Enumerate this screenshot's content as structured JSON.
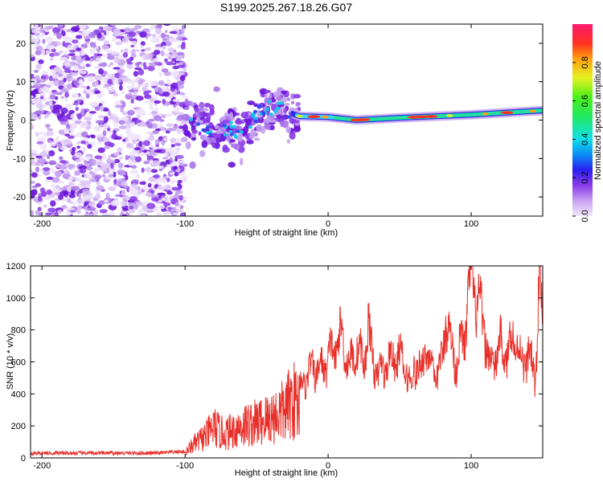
{
  "chart_data": [
    {
      "type": "heatmap",
      "title": "S199.2025.267.18.26.G07",
      "xlabel": "Height of straight line (km)",
      "ylabel": "Frequency (Hz)",
      "xlim": [
        -208,
        150
      ],
      "ylim": [
        -25,
        25
      ],
      "xticks": [
        -200,
        -100,
        0,
        100
      ],
      "yticks": [
        -20,
        -10,
        0,
        10,
        20
      ],
      "xtick_labels": [
        "-200",
        "-100",
        "0",
        "100"
      ],
      "ytick_labels": [
        "-20",
        "-10",
        "0",
        "10",
        "20"
      ],
      "colorbar": {
        "label": "Normalized spectral amplitude",
        "range": [
          0,
          1
        ],
        "ticks": [
          0.0,
          0.2,
          0.4,
          0.6,
          0.8
        ],
        "tick_labels": [
          "0.0",
          "0.2",
          "0.4",
          "0.6",
          "0.8"
        ]
      },
      "trend": [
        {
          "x": -100,
          "y": 0
        },
        {
          "x": -80,
          "y": -2
        },
        {
          "x": -60,
          "y": -3
        },
        {
          "x": -45,
          "y": 3
        },
        {
          "x": -35,
          "y": 3
        },
        {
          "x": -20,
          "y": 1
        },
        {
          "x": 0,
          "y": 0.8
        },
        {
          "x": 20,
          "y": 0
        },
        {
          "x": 50,
          "y": 0.6
        },
        {
          "x": 100,
          "y": 1.4
        },
        {
          "x": 150,
          "y": 2.5
        }
      ]
    },
    {
      "type": "line",
      "xlabel": "Height of straight line (km)",
      "ylabel": "SNR (10 * v/v)",
      "xlim": [
        -208,
        150
      ],
      "ylim": [
        0,
        1200
      ],
      "xticks": [
        -200,
        -100,
        0,
        100
      ],
      "yticks": [
        0,
        200,
        400,
        600,
        800,
        1000,
        1200
      ],
      "xtick_labels": [
        "-200",
        "-100",
        "0",
        "100"
      ],
      "ytick_labels": [
        "0",
        "200",
        "400",
        "600",
        "800",
        "1000",
        "1200"
      ],
      "series": [
        {
          "name": "SNR",
          "color": "#e8302a",
          "x": [
            -208,
            -180,
            -150,
            -120,
            -100,
            -95,
            -85,
            -80,
            -75,
            -70,
            -60,
            -50,
            -40,
            -30,
            -25,
            -20,
            -15,
            -10,
            -5,
            0,
            5,
            10,
            15,
            20,
            25,
            28,
            30,
            35,
            40,
            45,
            50,
            55,
            58,
            60,
            65,
            68,
            70,
            75,
            80,
            82,
            85,
            90,
            95,
            98,
            100,
            105,
            110,
            113,
            120,
            125,
            130,
            135,
            140,
            145,
            148,
            150
          ],
          "y": [
            30,
            30,
            30,
            30,
            40,
            100,
            180,
            250,
            200,
            200,
            260,
            280,
            320,
            380,
            470,
            430,
            520,
            560,
            550,
            620,
            700,
            760,
            560,
            700,
            580,
            860,
            650,
            520,
            580,
            620,
            630,
            540,
            420,
            600,
            520,
            740,
            620,
            500,
            600,
            940,
            720,
            600,
            760,
            1000,
            1150,
            950,
            780,
            560,
            700,
            640,
            780,
            600,
            640,
            520,
            1150,
            800
          ]
        }
      ]
    }
  ]
}
